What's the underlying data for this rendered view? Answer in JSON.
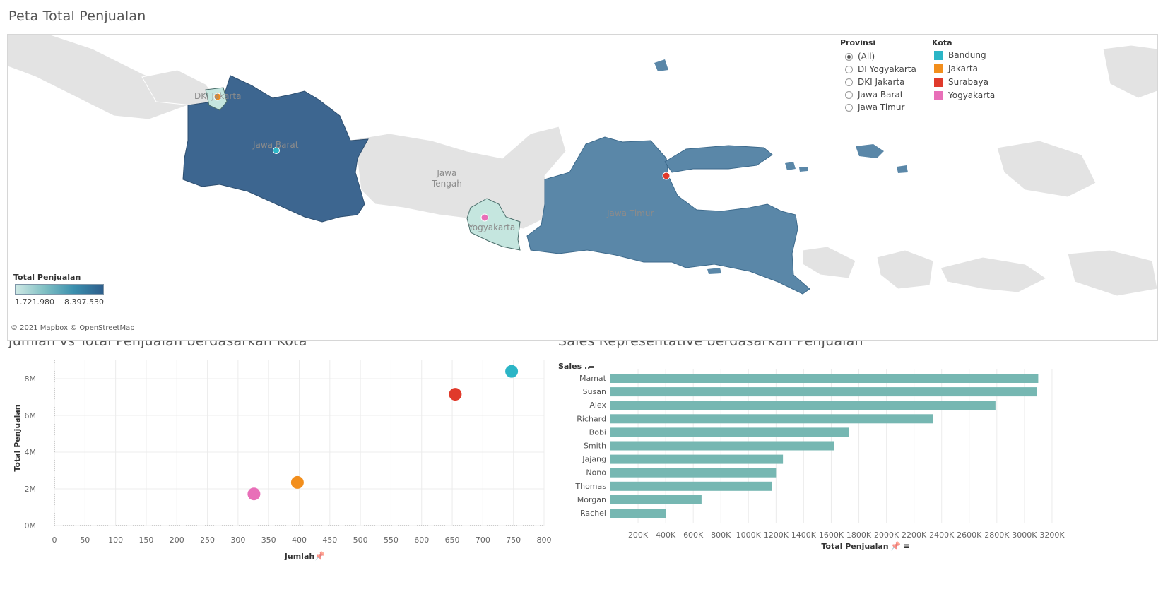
{
  "titles": {
    "map": "Peta Total Penjualan",
    "scatter": "Jumlah vs Total Penjualan berdasarkan Kota",
    "bar": "Sales Representative berdasarkan Penjualan"
  },
  "map": {
    "province_filter": {
      "title": "Provinsi",
      "selected": "(All)",
      "options": [
        "(All)",
        "DI Yogyakarta",
        "DKI Jakarta",
        "Jawa Barat",
        "Jawa Timur"
      ]
    },
    "city_legend": {
      "title": "Kota",
      "items": [
        {
          "label": "Bandung",
          "color": "#2bb5c6"
        },
        {
          "label": "Jakarta",
          "color": "#f28e1c"
        },
        {
          "label": "Surabaya",
          "color": "#e03a2b"
        },
        {
          "label": "Yogyakarta",
          "color": "#e86fb8"
        }
      ]
    },
    "region_labels": {
      "dki": "DKI Jakarta",
      "jabar": "Jawa Barat",
      "jateng": "Jawa\nTengah",
      "diy": "Yogyakarta",
      "jatim": "Jawa Timur"
    },
    "color_legend": {
      "title": "Total Penjualan",
      "min_label": "1.721.980",
      "max_label": "8.397.530",
      "min_color": "#cfe9e5",
      "max_color": "#2e5e8c"
    },
    "credit": "© 2021 Mapbox © OpenStreetMap"
  },
  "chart_data": [
    {
      "type": "scatter",
      "title": "Jumlah vs Total Penjualan berdasarkan Kota",
      "xlabel": "Jumlah",
      "ylabel": "Total Penjualan",
      "xlim": [
        0,
        800
      ],
      "ylim": [
        0,
        9000000
      ],
      "x_ticks": [
        "0",
        "50",
        "100",
        "150",
        "200",
        "250",
        "300",
        "350",
        "400",
        "450",
        "500",
        "550",
        "600",
        "650",
        "700",
        "750",
        "800"
      ],
      "y_ticks": [
        "0M",
        "2M",
        "4M",
        "6M",
        "8M"
      ],
      "points": [
        {
          "city": "Bandung",
          "x": 747,
          "y": 8397530,
          "color": "#2bb5c6"
        },
        {
          "city": "Surabaya",
          "x": 655,
          "y": 7150000,
          "color": "#e03a2b"
        },
        {
          "city": "Jakarta",
          "x": 397,
          "y": 2350000,
          "color": "#f28e1c"
        },
        {
          "city": "Yogyakarta",
          "x": 326,
          "y": 1721980,
          "color": "#e86fb8"
        }
      ],
      "grid": true
    },
    {
      "type": "bar",
      "orientation": "horizontal",
      "title": "Sales Representative berdasarkan Penjualan",
      "row_header": "Sales ..",
      "xlabel": "Total Penjualan",
      "categories": [
        "Mamat",
        "Susan",
        "Alex",
        "Richard",
        "Bobi",
        "Smith",
        "Jajang",
        "Nono",
        "Thomas",
        "Morgan",
        "Rachel"
      ],
      "values": [
        3100000,
        3090000,
        2790000,
        2340000,
        1730000,
        1620000,
        1250000,
        1200000,
        1170000,
        660000,
        400000
      ],
      "x_ticks": [
        "200K",
        "400K",
        "600K",
        "800K",
        "1000K",
        "1200K",
        "1400K",
        "1600K",
        "1800K",
        "2000K",
        "2200K",
        "2400K",
        "2600K",
        "2800K",
        "3000K",
        "3200K"
      ],
      "xlim": [
        0,
        3400000
      ],
      "bar_color": "#76b7b2"
    }
  ]
}
